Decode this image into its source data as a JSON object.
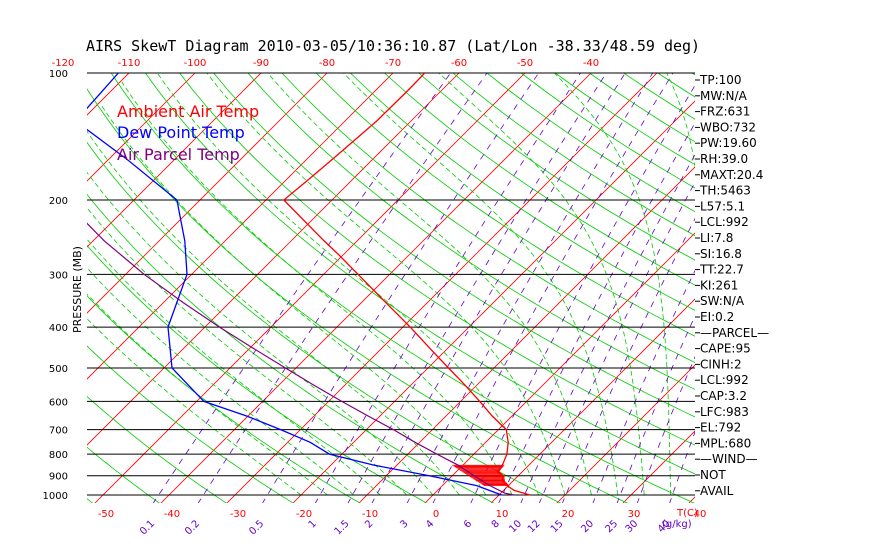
{
  "chart_data": {
    "type": "line",
    "title": "AIRS SkewT Diagram 2010-03-05/10:36:10.87 (Lat/Lon -38.33/48.59 deg)",
    "ylabel": "PRESSURE (MB)",
    "y_scale": "log-pressure (inverted)",
    "ylim": [
      1000,
      100
    ],
    "xlabel_bottom": "T(C)",
    "mixing_ratio_unit": "(g/kg)",
    "top_temperature_ticks": [
      "-120",
      "-110",
      "-100",
      "-90",
      "-80",
      "-70",
      "-60",
      "-50",
      "-40"
    ],
    "bottom_temperature_ticks": [
      "-50",
      "-40",
      "-30",
      "-20",
      "-10",
      "0",
      "10",
      "20",
      "30",
      "40"
    ],
    "mixing_ratio_ticks": [
      "0.1",
      "0.2",
      "0.5",
      "1",
      "1.5",
      "2",
      "3",
      "4",
      "6",
      "8",
      "10",
      "12",
      "15",
      "20",
      "25",
      "30",
      "40"
    ],
    "pressure_ticks": [
      "100",
      "200",
      "300",
      "400",
      "500",
      "600",
      "700",
      "800",
      "900",
      "1000"
    ],
    "series": [
      {
        "name": "Ambient Air Temp",
        "color": "#ff0000",
        "pressure": [
          1000,
          975,
          950,
          925,
          900,
          880,
          850,
          800,
          750,
          700,
          650,
          600,
          550,
          500,
          450,
          400,
          350,
          300,
          270,
          250,
          230,
          200,
          180,
          160,
          150,
          130,
          110,
          100
        ],
        "temp_c": [
          14.7,
          11.6,
          9.8,
          8.4,
          7.6,
          6.2,
          6.0,
          5.0,
          3.4,
          1.2,
          -3.0,
          -7.1,
          -11.7,
          -16.9,
          -22.6,
          -28.9,
          -36.3,
          -44.8,
          -50.6,
          -55.0,
          -59.6,
          -67.3,
          -66.7,
          -66.1,
          -65.8,
          -65.2,
          -65.1,
          -65.2
        ]
      },
      {
        "name": "Dew Point Temp",
        "color": "#0000ff",
        "pressure": [
          1000,
          950,
          900,
          850,
          800,
          750,
          700,
          650,
          600,
          500,
          400,
          300,
          250,
          200,
          160,
          130,
          100
        ],
        "temp_c": [
          10.4,
          5.2,
          -3.5,
          -13.4,
          -21.9,
          -26.6,
          -33.0,
          -40.2,
          -48.9,
          -58.8,
          -65.6,
          -70.7,
          -76.1,
          -83.5,
          -97.3,
          -110.8,
          -111.6
        ]
      },
      {
        "name": "Air Parcel Temp",
        "color": "#800080",
        "pressure": [
          1000,
          990,
          950,
          900,
          850,
          800,
          750,
          700,
          650,
          600,
          550,
          500,
          450,
          400,
          350,
          300,
          250,
          200,
          150,
          100
        ],
        "temp_c": [
          12.3,
          10.6,
          7.2,
          3.3,
          -0.7,
          -5.6,
          -10.7,
          -15.9,
          -21.8,
          -28.0,
          -34.6,
          -41.6,
          -49.3,
          -57.8,
          -67.0,
          -77.2,
          -88.3,
          -100.6,
          -114.6,
          -129.4
        ]
      }
    ],
    "cape_shading": {
      "top_pressure": 850,
      "bottom_pressure": 950
    },
    "indices": [
      "TP:100",
      "MW:N/A",
      "FRZ:631",
      "WBO:732",
      "PW:19.60",
      "RH:39.0",
      "MAXT:20.4",
      "TH:5463",
      "L57:5.1",
      "LCL:992",
      "LI:7.8",
      "SI:16.8",
      "TT:22.7",
      "KI:261",
      "SW:N/A",
      "EI:0.2",
      "—PARCEL—",
      "CAPE:95",
      "CINH:2",
      "LCL:992",
      "CAP:3.2",
      "LFC:983",
      "EL:792",
      "MPL:680",
      "—WIND—",
      "NOT",
      "AVAIL"
    ],
    "colors": {
      "isotherm": "#ff0000",
      "dry_adiabat": "#00cc00",
      "moist_adiabat": "#00cc00",
      "mixing_ratio": "#6600cc",
      "isobar": "#000000"
    }
  }
}
